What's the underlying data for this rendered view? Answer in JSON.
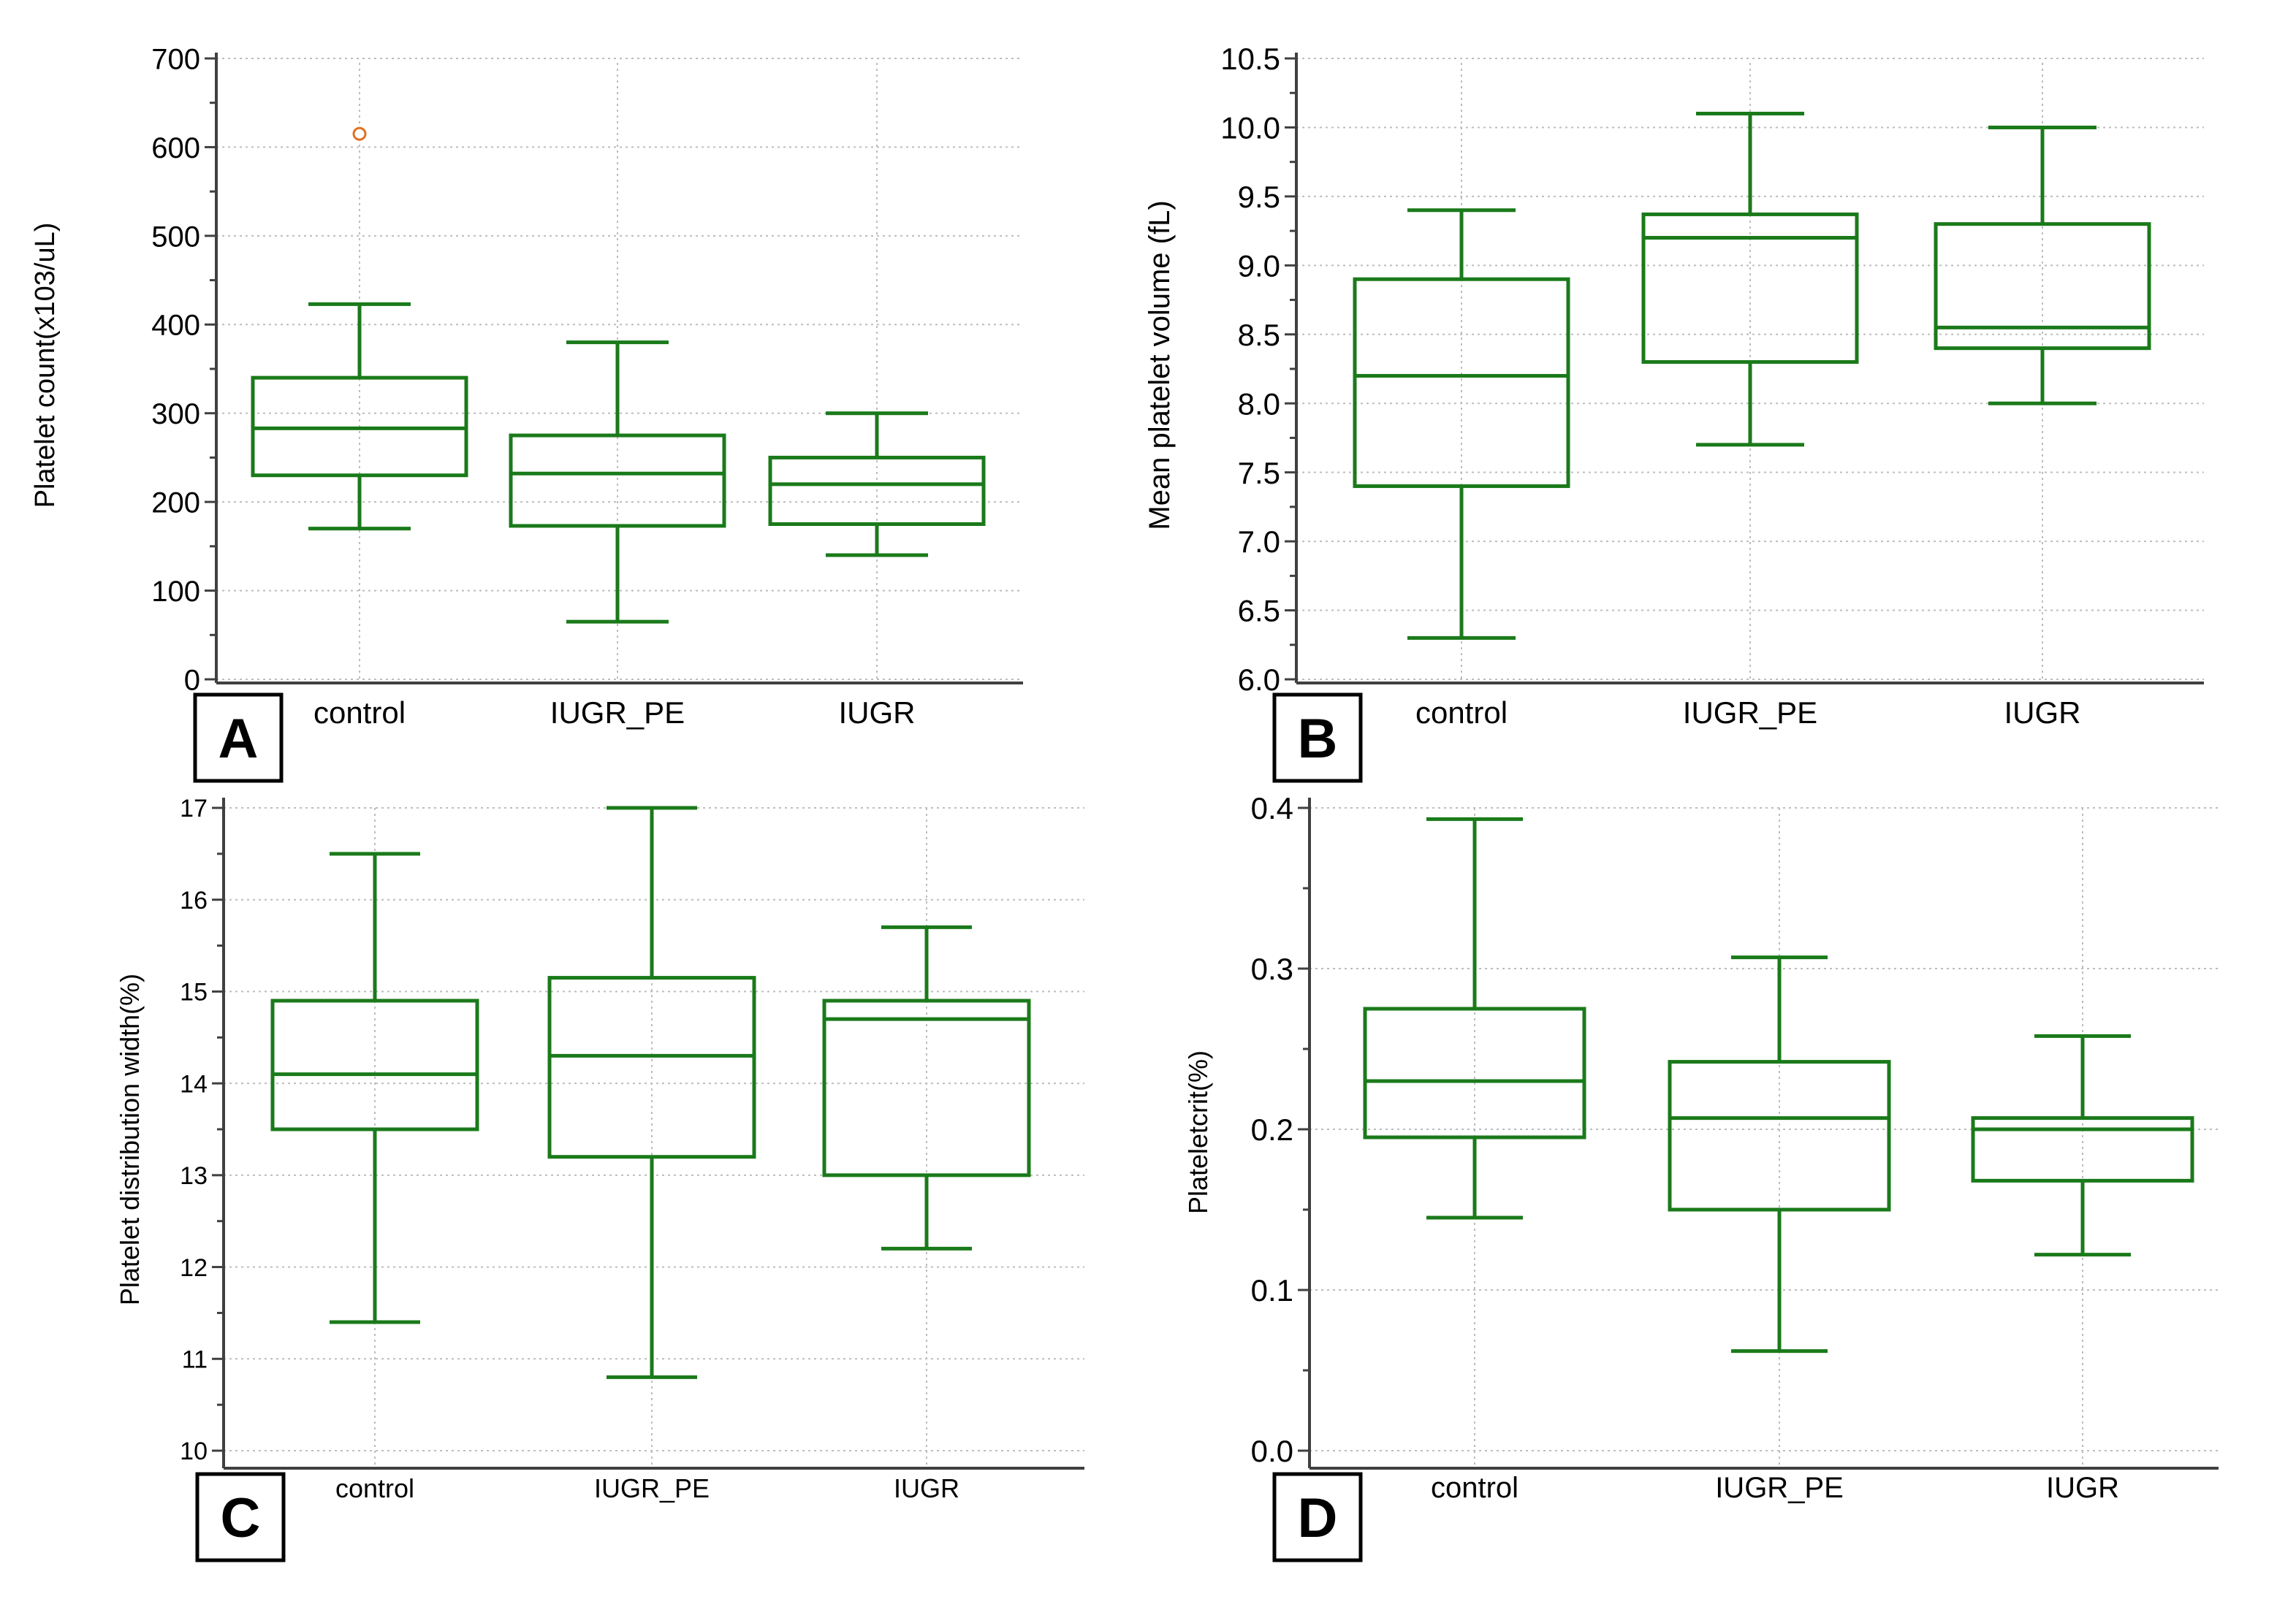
{
  "chart_data": [
    {
      "type": "box",
      "panel_label": "A",
      "title": "",
      "xlabel": "",
      "ylabel": "Platelet count(x103/uL)",
      "categories": [
        "control",
        "IUGR_PE",
        "IUGR"
      ],
      "ylim": [
        0,
        700
      ],
      "yticks": [
        0,
        100,
        200,
        300,
        400,
        500,
        600,
        700
      ],
      "ytick_labels": [
        "0",
        "100",
        "200",
        "300",
        "400",
        "500",
        "600",
        "700"
      ],
      "grid": true,
      "boxes": [
        {
          "min": 170,
          "q1": 230,
          "median": 283,
          "q3": 340,
          "max": 423,
          "outliers": [
            615
          ]
        },
        {
          "min": 65,
          "q1": 173,
          "median": 232,
          "q3": 275,
          "max": 380,
          "outliers": []
        },
        {
          "min": 140,
          "q1": 175,
          "median": 220,
          "q3": 250,
          "max": 300,
          "outliers": []
        }
      ],
      "colors": {
        "box": "#1a7a1a",
        "outlier": "#e07020",
        "grid": "#bdbdbd"
      }
    },
    {
      "type": "box",
      "panel_label": "B",
      "title": "",
      "xlabel": "",
      "ylabel": "Mean platelet volume (fL)",
      "categories": [
        "control",
        "IUGR_PE",
        "IUGR"
      ],
      "ylim": [
        6.0,
        10.5
      ],
      "yticks": [
        6.0,
        6.5,
        7.0,
        7.5,
        8.0,
        8.5,
        9.0,
        9.5,
        10.0,
        10.5
      ],
      "ytick_labels": [
        "6.0",
        "6.5",
        "7.0",
        "7.5",
        "8.0",
        "8.5",
        "9.0",
        "9.5",
        "10.0",
        "10.5"
      ],
      "grid": true,
      "boxes": [
        {
          "min": 6.3,
          "q1": 7.4,
          "median": 8.2,
          "q3": 8.9,
          "max": 9.4,
          "outliers": []
        },
        {
          "min": 7.7,
          "q1": 8.3,
          "median": 9.2,
          "q3": 9.37,
          "max": 10.1,
          "outliers": []
        },
        {
          "min": 8.0,
          "q1": 8.4,
          "median": 8.55,
          "q3": 9.3,
          "max": 10.0,
          "outliers": []
        }
      ],
      "colors": {
        "box": "#1a7a1a",
        "grid": "#bdbdbd"
      }
    },
    {
      "type": "box",
      "panel_label": "C",
      "title": "",
      "xlabel": "",
      "ylabel": "Platelet distribution width(%)",
      "categories": [
        "control",
        "IUGR_PE",
        "IUGR"
      ],
      "ylim": [
        10,
        17
      ],
      "yticks": [
        10,
        11,
        12,
        13,
        14,
        15,
        16,
        17
      ],
      "ytick_labels": [
        "10",
        "11",
        "12",
        "13",
        "14",
        "15",
        "16",
        "17"
      ],
      "grid": true,
      "boxes": [
        {
          "min": 11.4,
          "q1": 13.5,
          "median": 14.1,
          "q3": 14.9,
          "max": 16.5,
          "outliers": []
        },
        {
          "min": 10.8,
          "q1": 13.2,
          "median": 14.3,
          "q3": 15.15,
          "max": 17.0,
          "outliers": []
        },
        {
          "min": 12.2,
          "q1": 13.0,
          "median": 14.7,
          "q3": 14.9,
          "max": 15.7,
          "outliers": []
        }
      ],
      "colors": {
        "box": "#1a7a1a",
        "grid": "#bdbdbd"
      }
    },
    {
      "type": "box",
      "panel_label": "D",
      "title": "",
      "xlabel": "",
      "ylabel": "Plateletcrit(%)",
      "categories": [
        "control",
        "IUGR_PE",
        "IUGR"
      ],
      "ylim": [
        0.0,
        0.4
      ],
      "yticks": [
        0.0,
        0.1,
        0.2,
        0.3,
        0.4
      ],
      "ytick_labels": [
        "0.0",
        "0.1",
        "0.2",
        "0.3",
        "0.4"
      ],
      "grid": true,
      "boxes": [
        {
          "min": 0.145,
          "q1": 0.195,
          "median": 0.23,
          "q3": 0.275,
          "max": 0.393,
          "outliers": []
        },
        {
          "min": 0.062,
          "q1": 0.15,
          "median": 0.207,
          "q3": 0.242,
          "max": 0.307,
          "outliers": []
        },
        {
          "min": 0.122,
          "q1": 0.168,
          "median": 0.2,
          "q3": 0.207,
          "max": 0.258,
          "outliers": []
        }
      ],
      "colors": {
        "box": "#1a7a1a",
        "grid": "#bdbdbd"
      }
    }
  ]
}
